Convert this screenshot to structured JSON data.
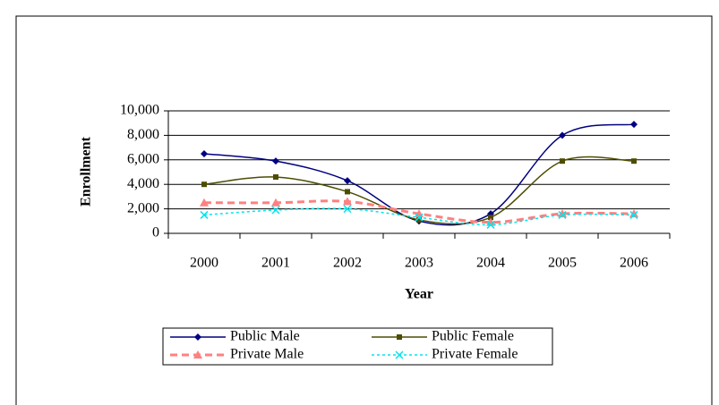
{
  "chart_data": {
    "type": "line",
    "categories": [
      "2000",
      "2001",
      "2002",
      "2003",
      "2004",
      "2005",
      "2006"
    ],
    "series": [
      {
        "name": "Public Male",
        "color": "#000080",
        "marker": "diamond",
        "dash": "solid",
        "values": [
          6500,
          5900,
          4300,
          1000,
          1600,
          8000,
          8900
        ]
      },
      {
        "name": "Public Female",
        "color": "#4d4d00",
        "marker": "square",
        "dash": "solid",
        "values": [
          4000,
          4600,
          3400,
          1100,
          1300,
          5900,
          5900
        ]
      },
      {
        "name": "Private Male",
        "color": "#ff8080",
        "marker": "triangle",
        "dash": "dashed",
        "values": [
          2500,
          2500,
          2600,
          1600,
          900,
          1600,
          1600
        ]
      },
      {
        "name": "Private Female",
        "color": "#00e5ee",
        "marker": "x",
        "dash": "dotted",
        "values": [
          1500,
          1900,
          2000,
          1300,
          700,
          1500,
          1500
        ]
      }
    ],
    "xlabel": "Year",
    "ylabel": "Enrollment",
    "ylim": [
      0,
      10000
    ],
    "yticks": [
      0,
      {
        "value": 2000,
        "label": "2,000"
      },
      {
        "value": 4000,
        "label": "4,000"
      },
      {
        "value": 6000,
        "label": "6,000"
      },
      {
        "value": 8000,
        "label": "8,000"
      },
      {
        "value": 10000,
        "label": "10,000"
      }
    ],
    "grid": true,
    "smooth": true,
    "legend": "bottom"
  }
}
